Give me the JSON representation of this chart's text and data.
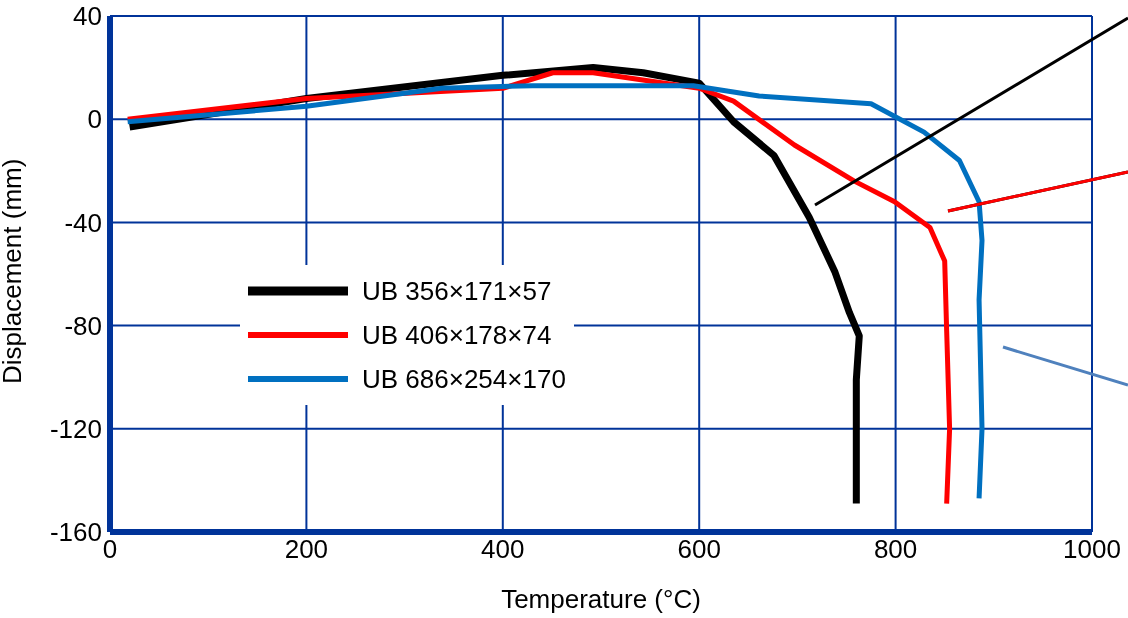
{
  "chart_data": {
    "type": "line",
    "xlabel": "Temperature (°C)",
    "ylabel": "Displacement (mm)",
    "xlim": [
      0,
      1000
    ],
    "xticks": [
      0,
      200,
      400,
      600,
      800,
      1000
    ],
    "ylim": [
      -160,
      40
    ],
    "yticks": [
      -160,
      -120,
      -80,
      -40,
      0,
      40
    ],
    "grid": true,
    "legend": "left",
    "marker": "none",
    "line_style": "solid",
    "series": [
      {
        "name": "UB 356×171×57",
        "color": "#000000",
        "x": [
          20,
          200,
          400,
          492,
          543,
          600,
          635,
          676,
          712,
          738,
          753,
          763,
          760,
          760
        ],
        "values": [
          -3,
          8,
          17,
          20,
          18,
          14,
          -1,
          -14,
          -38,
          -59,
          -75,
          -84,
          -101,
          -149
        ]
      },
      {
        "name": "UB 406×178×74",
        "color": "#ff0000",
        "x": [
          18,
          200,
          400,
          451,
          492,
          600,
          635,
          697,
          758,
          799,
          835,
          850,
          852,
          855,
          852
        ],
        "values": [
          0,
          8,
          12,
          18,
          18,
          12,
          7,
          -10,
          -24,
          -32,
          -42,
          -55,
          -82,
          -120,
          -149
        ]
      },
      {
        "name": "UB 686×254×170",
        "color": "#0070c0",
        "x": [
          18,
          200,
          338,
          430,
          594,
          661,
          775,
          829,
          865,
          885,
          888,
          885,
          888,
          885
        ],
        "values": [
          -1,
          5,
          12,
          13,
          13,
          9,
          6,
          -5,
          -16,
          -32,
          -47,
          -70,
          -120,
          -147
        ]
      }
    ]
  }
}
